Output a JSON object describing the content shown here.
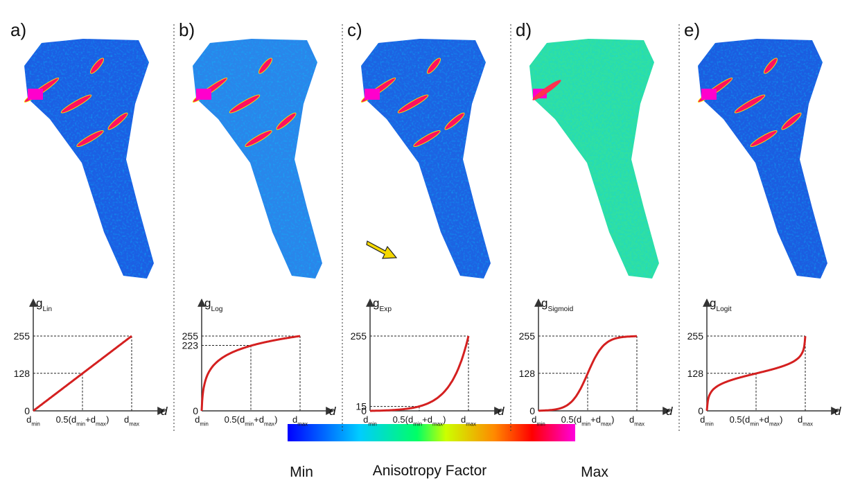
{
  "panels": [
    {
      "label": "a)",
      "y_label": {
        "symbol": "g",
        "subscript": "Lin"
      },
      "yticks": [
        255,
        128,
        0
      ]
    },
    {
      "label": "b)",
      "y_label": {
        "symbol": "g",
        "subscript": "Log"
      },
      "yticks": [
        255,
        223,
        0
      ]
    },
    {
      "label": "c)",
      "y_label": {
        "symbol": "g",
        "subscript": "Exp"
      },
      "yticks": [
        255,
        15,
        0
      ]
    },
    {
      "label": "d)",
      "y_label": {
        "symbol": "g",
        "subscript": "Sigmoid"
      },
      "yticks": [
        255,
        128,
        0
      ]
    },
    {
      "label": "e)",
      "y_label": {
        "symbol": "g",
        "subscript": "Logit"
      },
      "yticks": [
        255,
        128,
        0
      ]
    }
  ],
  "x_axis": {
    "min": {
      "symbol": "d",
      "subscript": "min"
    },
    "mid": [
      {
        "text": "0.5(d"
      },
      {
        "sub": "min"
      },
      {
        "text": "+d"
      },
      {
        "sub": "max"
      },
      {
        "text": ")"
      }
    ],
    "max": {
      "symbol": "d",
      "subscript": "max"
    },
    "label": "d"
  },
  "colorbar": {
    "min": "Min",
    "title": "Anisotropy Factor",
    "max": "Max"
  }
}
